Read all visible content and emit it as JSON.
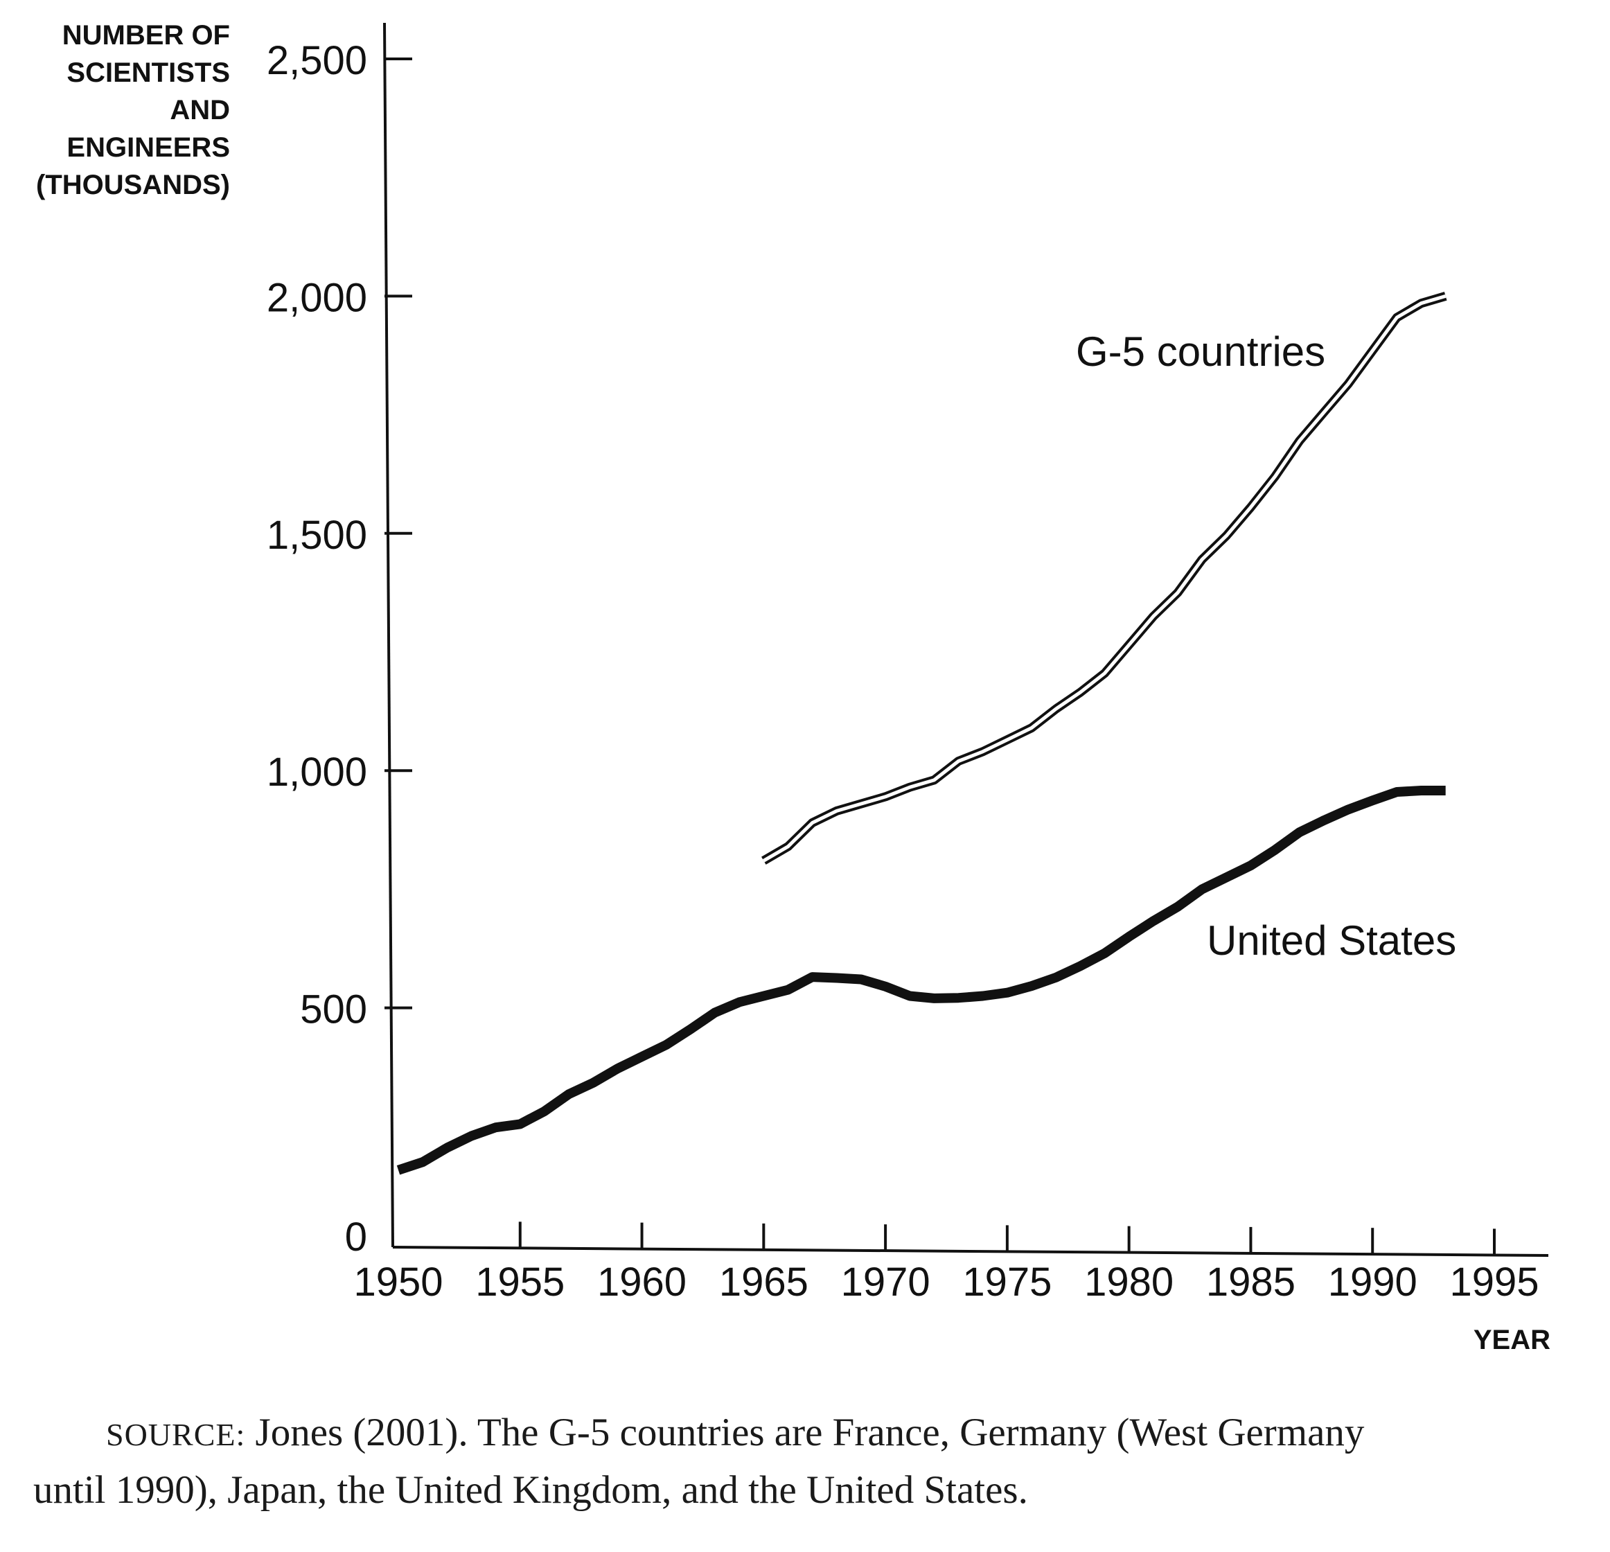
{
  "chart_data": {
    "type": "line",
    "ylabel_lines": [
      "NUMBER OF",
      "SCIENTISTS",
      "AND",
      "ENGINEERS",
      "(THOUSANDS)"
    ],
    "xlabel": "YEAR",
    "xlim": [
      1950,
      1995
    ],
    "ylim": [
      0,
      2500
    ],
    "x_ticks": [
      1950,
      1955,
      1960,
      1965,
      1970,
      1975,
      1980,
      1985,
      1990,
      1995
    ],
    "x_tick_labels": [
      "1950",
      "1955",
      "1960",
      "1965",
      "1970",
      "1975",
      "1980",
      "1985",
      "1990",
      "1995"
    ],
    "y_ticks": [
      0,
      500,
      1000,
      1500,
      2000,
      2500
    ],
    "y_tick_labels": [
      "0",
      "500",
      "1,000",
      "1,500",
      "2,000",
      "2,500"
    ],
    "grid": false,
    "series": [
      {
        "name": "G-5 countries",
        "style": "double-line",
        "x": [
          1965,
          1966,
          1967,
          1968,
          1969,
          1970,
          1971,
          1972,
          1973,
          1974,
          1975,
          1976,
          1977,
          1978,
          1979,
          1980,
          1981,
          1982,
          1983,
          1984,
          1985,
          1986,
          1987,
          1988,
          1989,
          1990,
          1991,
          1992,
          1993
        ],
        "values": [
          810,
          840,
          890,
          915,
          930,
          945,
          965,
          980,
          1020,
          1040,
          1065,
          1090,
          1130,
          1165,
          1205,
          1265,
          1325,
          1375,
          1445,
          1495,
          1555,
          1620,
          1695,
          1755,
          1815,
          1885,
          1955,
          1985,
          2000
        ]
      },
      {
        "name": "United States",
        "style": "thick-line",
        "x": [
          1950,
          1951,
          1952,
          1953,
          1954,
          1955,
          1956,
          1957,
          1958,
          1959,
          1960,
          1961,
          1962,
          1963,
          1964,
          1965,
          1966,
          1967,
          1968,
          1969,
          1970,
          1971,
          1972,
          1973,
          1974,
          1975,
          1976,
          1977,
          1978,
          1979,
          1980,
          1981,
          1982,
          1983,
          1984,
          1985,
          1986,
          1987,
          1988,
          1989,
          1990,
          1991,
          1992,
          1993
        ],
        "values": [
          158,
          175,
          205,
          230,
          248,
          255,
          282,
          318,
          342,
          372,
          397,
          422,
          455,
          490,
          512,
          525,
          538,
          565,
          563,
          560,
          545,
          525,
          520,
          521,
          525,
          532,
          546,
          564,
          588,
          615,
          650,
          683,
          713,
          750,
          775,
          800,
          833,
          870,
          895,
          918,
          937,
          955,
          958,
          958
        ]
      }
    ],
    "annotations": [
      {
        "text": "G-5 countries",
        "series": "G-5 countries"
      },
      {
        "text": "United States",
        "series": "United States"
      }
    ]
  },
  "caption": {
    "source_label": "SOURCE:",
    "line1_rest": " Jones (2001). The G-5 countries are France, Germany (West Germany",
    "line2": "until 1990), Japan, the United Kingdom, and the United States."
  }
}
